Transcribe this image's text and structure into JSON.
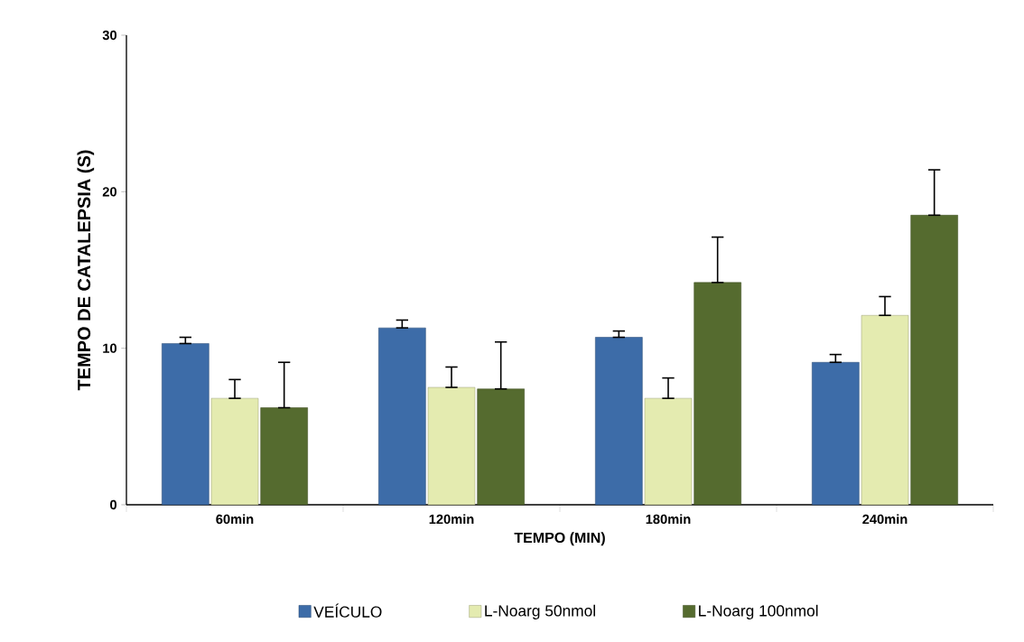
{
  "chart_data": {
    "type": "bar",
    "xlabel": "TEMPO (MIN)",
    "ylabel": "TEMPO DE CATALEPSIA (S)",
    "categories": [
      "60min",
      "120min",
      "180min",
      "240min"
    ],
    "series": [
      {
        "name": "VEÍCULO",
        "color": "#3d6ca8",
        "values": [
          10.3,
          11.3,
          10.7,
          9.1
        ],
        "errors": [
          [
            10.3,
            10.7
          ],
          [
            11.3,
            11.8
          ],
          [
            10.7,
            11.1
          ],
          [
            9.1,
            9.6
          ]
        ]
      },
      {
        "name": "L-Noarg 50nmol",
        "color": "#e4ebb0",
        "values": [
          6.8,
          7.5,
          6.8,
          12.1
        ],
        "errors": [
          [
            6.8,
            8.0
          ],
          [
            7.5,
            8.8
          ],
          [
            6.8,
            8.1
          ],
          [
            12.1,
            13.3
          ]
        ]
      },
      {
        "name": "L-Noarg 100nmol",
        "color": "#556b2f",
        "values": [
          6.2,
          7.4,
          14.2,
          18.5
        ],
        "errors": [
          [
            6.2,
            9.1
          ],
          [
            7.4,
            10.4
          ],
          [
            14.2,
            17.1
          ],
          [
            18.5,
            21.4
          ]
        ]
      }
    ],
    "ylim": [
      0,
      30
    ],
    "yticks": [
      0,
      10,
      20,
      30
    ],
    "grid": false,
    "legend": "bottom"
  }
}
